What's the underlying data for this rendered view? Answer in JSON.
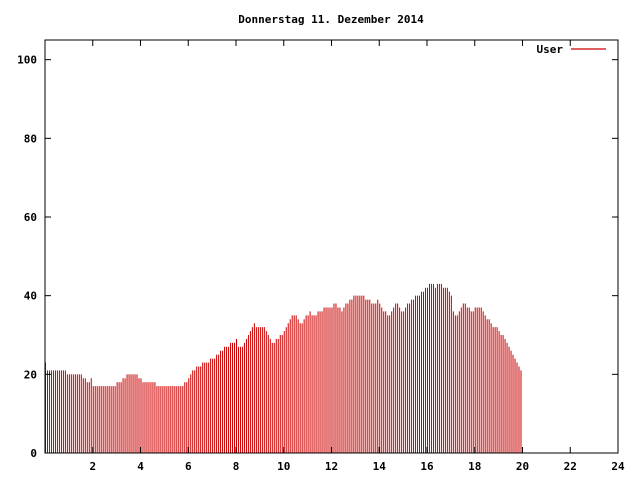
{
  "chart_data": {
    "type": "bar",
    "title": "Donnerstag 11. Dezember 2014",
    "xlabel": "",
    "ylabel": "",
    "xlim": [
      0,
      24
    ],
    "ylim": [
      0,
      105
    ],
    "x_ticks": [
      2,
      4,
      6,
      8,
      10,
      12,
      14,
      16,
      18,
      20,
      22,
      24
    ],
    "y_ticks": [
      0,
      20,
      40,
      60,
      80,
      100
    ],
    "grid": false,
    "legend": "top-right",
    "color": "#cc0000",
    "series": [
      {
        "name": "User",
        "sample_interval_hours": 0.08333,
        "values": [
          23,
          21,
          21,
          21,
          21,
          21,
          21,
          21,
          21,
          21,
          21,
          20,
          20,
          20,
          20,
          20,
          20,
          20,
          20,
          19,
          19,
          18,
          18,
          19,
          17,
          17,
          17,
          17,
          17,
          17,
          17,
          17,
          17,
          17,
          17,
          17,
          18,
          18,
          18,
          19,
          19,
          20,
          20,
          20,
          20,
          20,
          20,
          19,
          19,
          18,
          18,
          18,
          18,
          18,
          18,
          18,
          17,
          17,
          17,
          17,
          17,
          17,
          17,
          17,
          17,
          17,
          17,
          17,
          17,
          17,
          18,
          18,
          19,
          20,
          21,
          21,
          22,
          22,
          22,
          23,
          23,
          23,
          23,
          24,
          24,
          24,
          25,
          25,
          26,
          26,
          27,
          27,
          27,
          28,
          28,
          28,
          29,
          27,
          27,
          27,
          28,
          29,
          30,
          31,
          32,
          33,
          32,
          32,
          32,
          32,
          32,
          31,
          30,
          29,
          28,
          28,
          29,
          29,
          30,
          30,
          31,
          32,
          33,
          34,
          35,
          35,
          35,
          34,
          33,
          33,
          34,
          35,
          35,
          36,
          35,
          35,
          35,
          36,
          36,
          36,
          37,
          37,
          37,
          37,
          37,
          38,
          38,
          37,
          37,
          36,
          37,
          38,
          38,
          39,
          39,
          40,
          40,
          40,
          40,
          40,
          40,
          39,
          39,
          39,
          38,
          38,
          38,
          39,
          38,
          37,
          36,
          36,
          35,
          35,
          36,
          37,
          38,
          38,
          37,
          36,
          36,
          37,
          38,
          38,
          39,
          39,
          40,
          40,
          40,
          41,
          41,
          42,
          42,
          43,
          43,
          43,
          42,
          43,
          43,
          43,
          42,
          42,
          42,
          41,
          40,
          36,
          35,
          35,
          36,
          37,
          38,
          38,
          37,
          37,
          36,
          36,
          37,
          37,
          37,
          37,
          36,
          35,
          34,
          34,
          33,
          32,
          32,
          32,
          31,
          30,
          30,
          29,
          28,
          27,
          26,
          25,
          24,
          23,
          22,
          21
        ]
      }
    ]
  }
}
